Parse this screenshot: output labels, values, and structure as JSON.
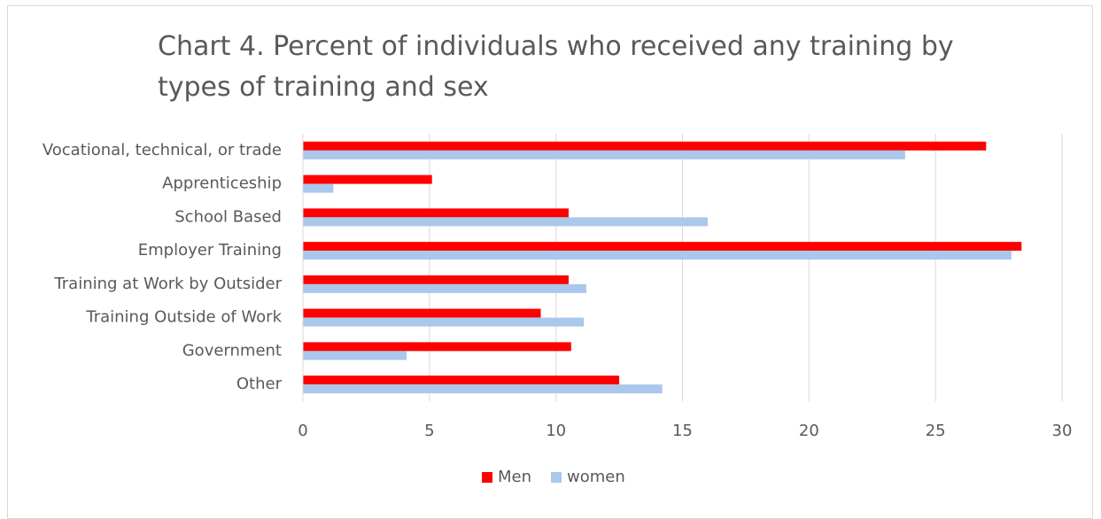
{
  "chart_data": {
    "type": "hbar",
    "title": "Chart 4. Percent of individuals who received any training by types of training and sex",
    "categories": [
      "Vocational, technical, or trade",
      "Apprenticeship",
      "School Based",
      "Employer Training",
      "Training at Work by Outsider",
      "Training Outside of Work",
      "Government",
      "Other"
    ],
    "series": [
      {
        "name": "Men",
        "color": "#ff0000",
        "values": [
          27.0,
          5.1,
          10.5,
          28.4,
          10.5,
          9.4,
          10.6,
          12.5
        ]
      },
      {
        "name": "women",
        "color": "#a9c8eb",
        "values": [
          23.8,
          1.2,
          16.0,
          28.0,
          11.2,
          11.1,
          4.1,
          14.2
        ]
      }
    ],
    "xlim": [
      0,
      30
    ],
    "xticks": [
      0,
      5,
      10,
      15,
      20,
      25,
      30
    ],
    "grid": true,
    "legend": "bottom"
  }
}
